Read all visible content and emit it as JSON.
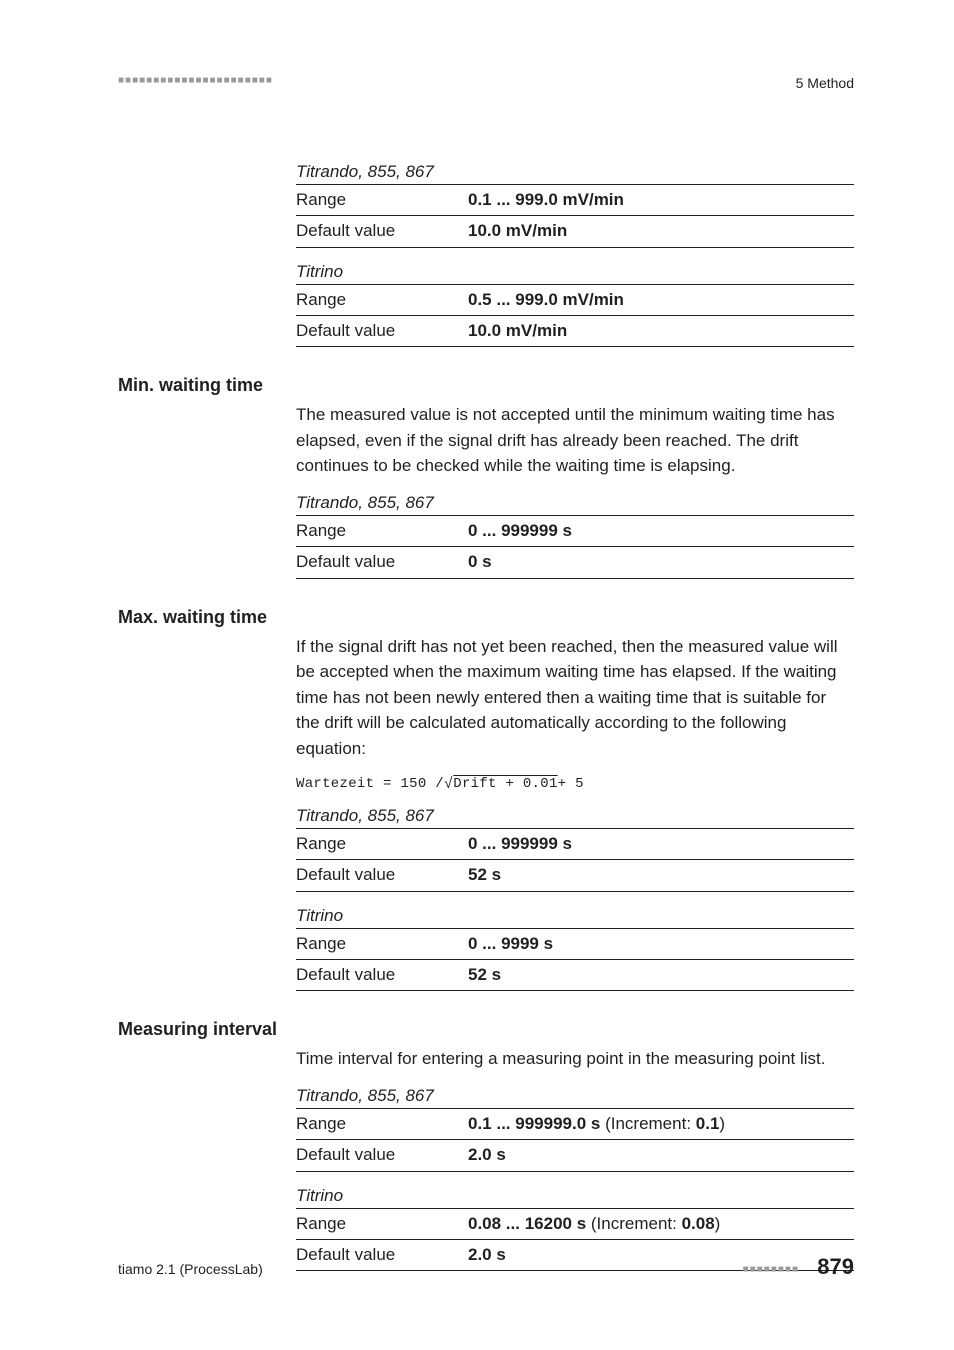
{
  "header": {
    "marks": "■■■■■■■■■■■■■■■■■■■■■■",
    "section_label": "5 Method"
  },
  "footer": {
    "left": "tiamo 2.1 (ProcessLab)",
    "marks": "■■■■■■■■",
    "page": "879"
  },
  "blocks": [
    {
      "kind": "device",
      "label": "Titrando, 855, 867",
      "rows": [
        {
          "label": "Range",
          "value": "0.1 ... 999.0 mV/min"
        },
        {
          "label": "Default value",
          "value": "10.0 mV/min"
        }
      ]
    },
    {
      "kind": "device",
      "label": "Titrino",
      "rows": [
        {
          "label": "Range",
          "value": "0.5 ... 999.0 mV/min"
        },
        {
          "label": "Default value",
          "value": "10.0 mV/min"
        }
      ]
    },
    {
      "kind": "section",
      "title": "Min. waiting time",
      "body": "The measured value is not accepted until the minimum waiting time has elapsed, even if the signal drift has already been reached. The drift continues to be checked while the waiting time is elapsing."
    },
    {
      "kind": "device",
      "label": "Titrando, 855, 867",
      "rows": [
        {
          "label": "Range",
          "value": "0 ... 999999 s"
        },
        {
          "label": "Default value",
          "value": "0 s"
        }
      ]
    },
    {
      "kind": "section",
      "title": "Max. waiting time",
      "body": "If the signal drift has not yet been reached, then the measured value will be accepted when the maximum waiting time has elapsed. If the waiting time has not been newly entered then a waiting time that is suitable for the drift will be calculated automatically according to the following equation:"
    },
    {
      "kind": "formula",
      "prefix": "Wartezeit = 150 /",
      "radicand": "Drift + 0.01",
      "suffix": " + 5"
    },
    {
      "kind": "device",
      "label": "Titrando, 855, 867",
      "rows": [
        {
          "label": "Range",
          "value": "0 ... 999999 s"
        },
        {
          "label": "Default value",
          "value": "52 s"
        }
      ]
    },
    {
      "kind": "device",
      "label": "Titrino",
      "rows": [
        {
          "label": "Range",
          "value": "0 ... 9999 s"
        },
        {
          "label": "Default value",
          "value": "52 s"
        }
      ]
    },
    {
      "kind": "section",
      "title": "Measuring interval",
      "body": "Time interval for entering a measuring point in the measuring point list."
    },
    {
      "kind": "device",
      "label": "Titrando, 855, 867",
      "rows": [
        {
          "label": "Range",
          "value_html": "<span class=\"bold\">0.1 ... 999999.0 s</span><span class=\"light\"> (Increment: </span><span class=\"bold\">0.1</span><span class=\"light\">)</span>"
        },
        {
          "label": "Default value",
          "value": "2.0 s"
        }
      ]
    },
    {
      "kind": "device",
      "label": "Titrino",
      "rows": [
        {
          "label": "Range",
          "value_html": "<span class=\"bold\">0.08 ... 16200 s</span><span class=\"light\"> (Increment: </span><span class=\"bold\">0.08</span><span class=\"light\">)</span>"
        },
        {
          "label": "Default value",
          "value": "2.0 s"
        }
      ]
    }
  ]
}
